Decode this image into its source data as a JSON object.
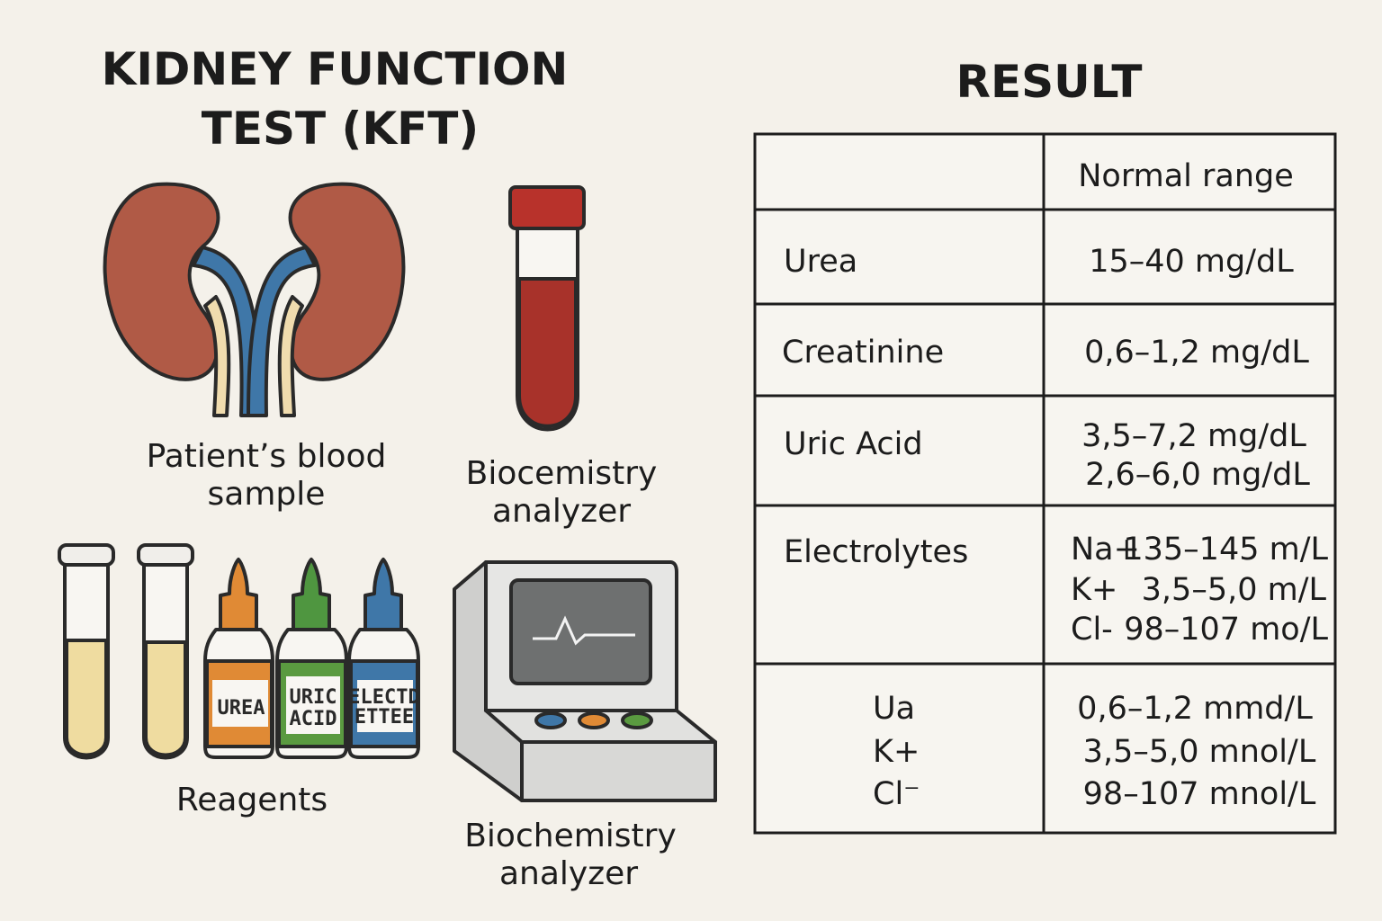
{
  "title": [
    "KIDNEY FUNCTION",
    "TEST (KFT)"
  ],
  "illustrations": [
    {
      "label": [
        "Patient’s blood",
        "sample"
      ]
    },
    {
      "label": [
        "Biocemistry",
        "analyzer"
      ]
    },
    {
      "label": [
        "Reagents"
      ]
    },
    {
      "label": [
        "Biochemistry",
        "analyzer"
      ]
    }
  ],
  "bottle_labels": [
    [
      "UREA"
    ],
    [
      "URIC",
      "ACID"
    ],
    [
      "ELECTD",
      "ETTEE"
    ]
  ],
  "result": {
    "title": "RESULT",
    "header": {
      "range": "Normal range"
    },
    "rows": [
      {
        "test": [
          "Urea"
        ],
        "range": [
          "15–40 mg/dL"
        ]
      },
      {
        "test": [
          "Creatinine"
        ],
        "range": [
          "0,6–1,2 mg/dL"
        ]
      },
      {
        "test": [
          "Uric Acid"
        ],
        "range": [
          "3,5–7,2 mg/dL",
          "2,6–6,0 mg/dL"
        ]
      },
      {
        "test": [
          "Electrolytes"
        ],
        "range_items": [
          {
            "ion": "Na+",
            "value": "135–145 m/L"
          },
          {
            "ion": "K+",
            "value": "3,5–5,0 m/L"
          },
          {
            "ion": "Cl-",
            "value": "98–107 mo/L"
          }
        ]
      },
      {
        "test": [
          "Ua",
          "K+",
          "Cl⁻"
        ],
        "range": [
          "0,6–1,2 mmd/L",
          "3,5–5,0 mnol/L",
          "98–107 mnol/L"
        ]
      }
    ]
  }
}
